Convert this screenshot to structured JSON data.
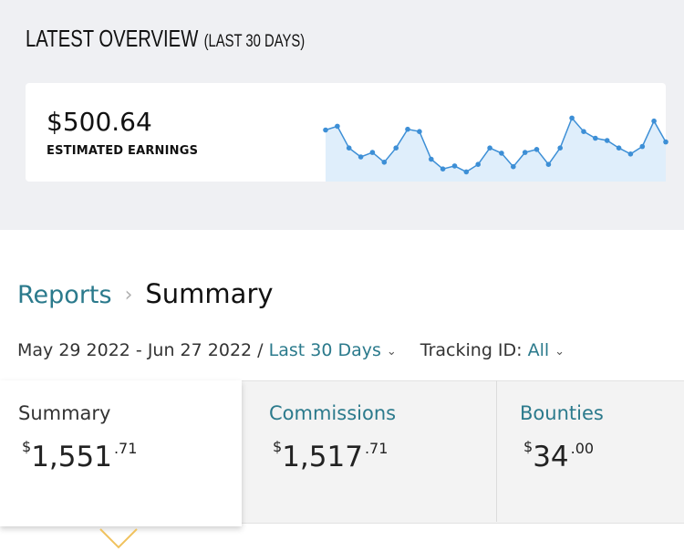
{
  "overview": {
    "title": "LATEST OVERVIEW",
    "subtitle": "(LAST 30 DAYS)",
    "amount": "$500.64",
    "label": "ESTIMATED EARNINGS",
    "line_color": "#3d8fd6",
    "fill_color": "#dfeefb"
  },
  "chart_data": {
    "type": "area",
    "values": [
      64,
      69,
      40,
      28,
      34,
      21,
      40,
      65,
      62,
      25,
      12,
      16,
      8,
      18,
      40,
      33,
      15,
      34,
      38,
      18,
      40,
      80,
      62,
      53,
      50,
      40,
      32,
      42,
      76,
      48
    ],
    "title": "",
    "xlabel": "",
    "ylabel": ""
  },
  "breadcrumb": {
    "parent": "Reports",
    "separator": "›",
    "current": "Summary"
  },
  "filters": {
    "date_range": "May 29 2022 - Jun 27 2022",
    "slash": "/",
    "range_label": "Last 30 Days",
    "tracking_label": "Tracking ID:",
    "tracking_value": "All",
    "chevron": "⌄"
  },
  "tabs": [
    {
      "label": "Summary",
      "currency": "$",
      "dollars": "1,551",
      "cents": ".71",
      "active": true
    },
    {
      "label": "Commissions",
      "currency": "$",
      "dollars": "1,517",
      "cents": ".71",
      "active": false
    },
    {
      "label": "Bounties",
      "currency": "$",
      "dollars": "34",
      "cents": ".00",
      "active": false
    }
  ],
  "colors": {
    "link": "#2b7a8c",
    "caret": "#f0c25e"
  }
}
